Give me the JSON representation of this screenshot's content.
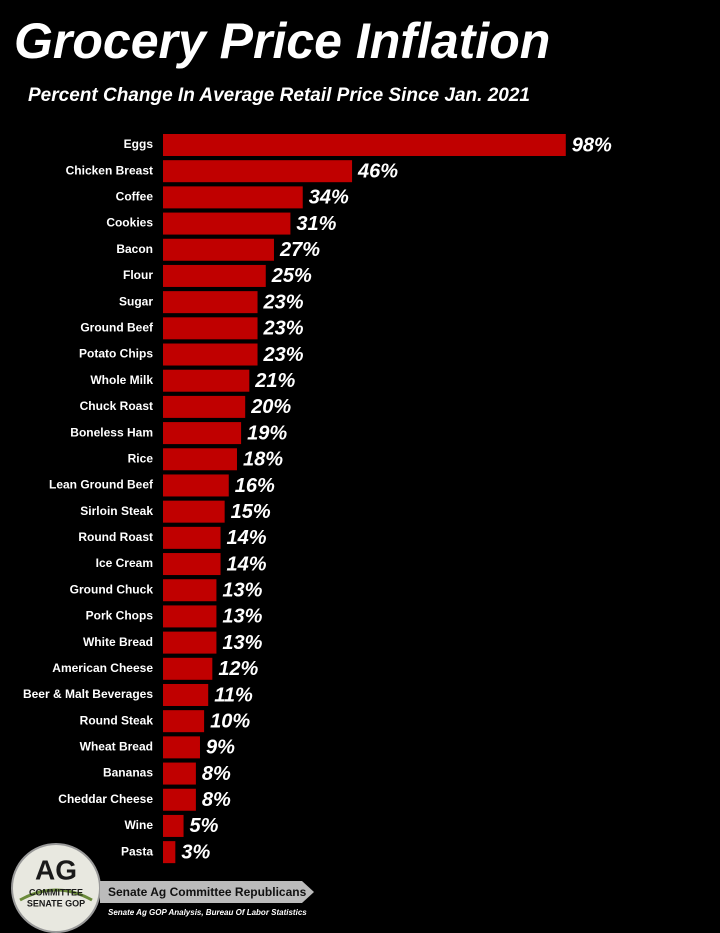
{
  "chart_data": {
    "type": "bar",
    "orientation": "horizontal",
    "title": "Grocery Price Inflation",
    "subtitle": "Percent Change In Average Retail Price Since Jan. 2021",
    "categories": [
      "Eggs",
      "Chicken Breast",
      "Coffee",
      "Cookies",
      "Bacon",
      "Flour",
      "Sugar",
      "Ground Beef",
      "Potato Chips",
      "Whole Milk",
      "Chuck Roast",
      "Boneless Ham",
      "Rice",
      "Lean Ground Beef",
      "Sirloin Steak",
      "Round Roast",
      "Ice Cream",
      "Ground Chuck",
      "Pork Chops",
      "White Bread",
      "American Cheese",
      "Beer & Malt Beverages",
      "Round Steak",
      "Wheat Bread",
      "Bananas",
      "Cheddar Cheese",
      "Wine",
      "Pasta"
    ],
    "values": [
      98,
      46,
      34,
      31,
      27,
      25,
      23,
      23,
      23,
      21,
      20,
      19,
      18,
      16,
      15,
      14,
      14,
      13,
      13,
      13,
      12,
      11,
      10,
      9,
      8,
      8,
      5,
      3
    ],
    "value_labels": [
      "98%",
      "46%",
      "34%",
      "31%",
      "27%",
      "25%",
      "23%",
      "23%",
      "23%",
      "21%",
      "20%",
      "19%",
      "18%",
      "16%",
      "15%",
      "14%",
      "14%",
      "13%",
      "13%",
      "13%",
      "12%",
      "11%",
      "10%",
      "9%",
      "8%",
      "8%",
      "5%",
      "3%"
    ],
    "color": "#c00000"
  },
  "logo": {
    "main": "AG",
    "line1": "COMMITTEE",
    "line2": "SENATE GOP"
  },
  "footer": {
    "name": "Senate Ag Committee Republicans",
    "source": "Senate Ag GOP Analysis, Bureau Of Labor Statistics"
  }
}
